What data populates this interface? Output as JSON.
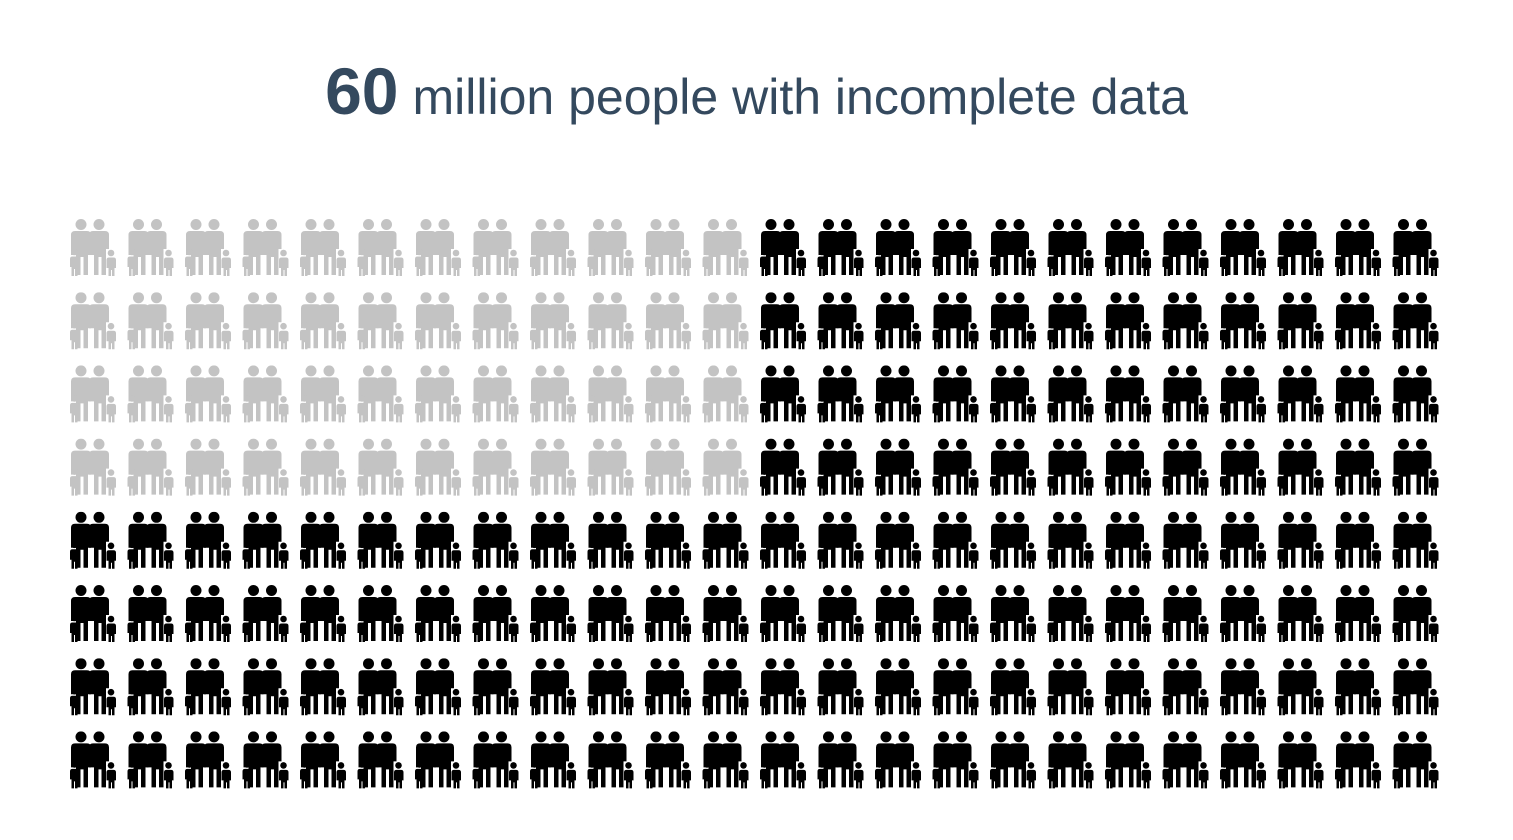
{
  "title": {
    "number": "60",
    "text": "million people with incomplete data"
  },
  "chart_data": {
    "type": "pictogram",
    "icon": "family-icon",
    "rows": 8,
    "columns": 24,
    "total_icons": 192,
    "highlighted_icons": 48,
    "highlighted_block": {
      "rows": 4,
      "columns": 12,
      "position": "top-left"
    },
    "highlighted_color": "#c3c3c3",
    "base_color": "#000000",
    "title": "60 million people with incomplete data"
  }
}
